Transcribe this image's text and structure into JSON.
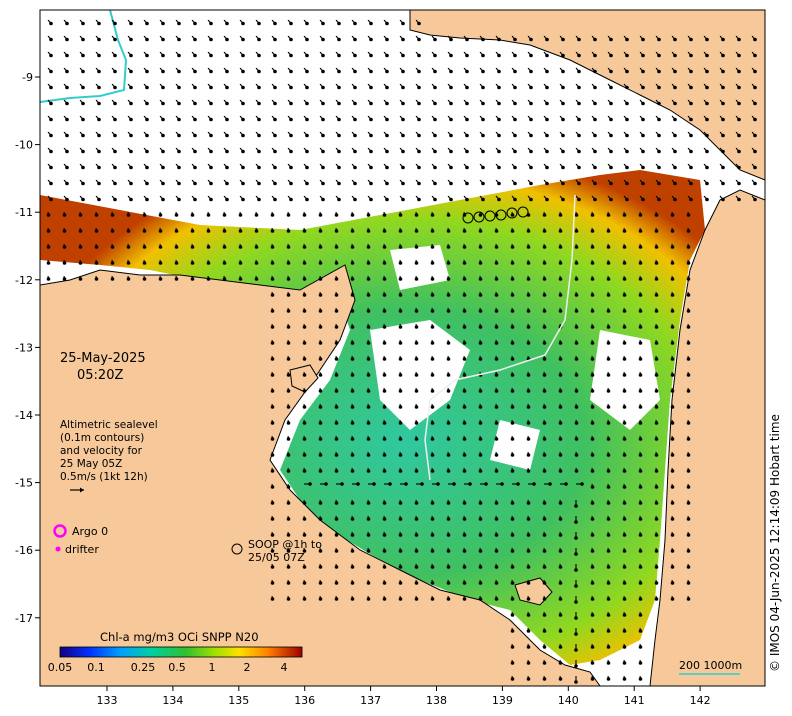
{
  "map": {
    "date_label": "25-May-2025",
    "time_label": "05:20Z",
    "legend": {
      "lines": [
        "Altimetric sealevel",
        "(0.1m contours)",
        "and velocity for",
        "25 May 05Z",
        "0.5m/s (1kt 12h)"
      ],
      "argo_label": "Argo 0",
      "drifter_label": "drifter",
      "soop_lines": [
        "SOOP @1h to",
        "25/05 07Z"
      ]
    },
    "colorbar": {
      "title": "Chl-a mg/m3 OCi SNPP N20",
      "ticks": [
        "0.05",
        "0.1",
        "0.25",
        "0.5",
        "1",
        "2",
        "4"
      ]
    },
    "scale_label": "200  1000m",
    "credit": "© IMOS 04-Jun-2025 12:14:09 Hobart time",
    "x_ticks": [
      "133",
      "134",
      "135",
      "136",
      "137",
      "138",
      "139",
      "140",
      "141",
      "142"
    ],
    "y_ticks": [
      "-9",
      "-10",
      "-11",
      "-12",
      "-13",
      "-14",
      "-15",
      "-16",
      "-17"
    ],
    "colors": {
      "land": "#f7c99a",
      "ocean_no_data": "#ffffff",
      "argo": "#ff00ff",
      "drifter": "#ff00ff",
      "track": "#33cccc"
    }
  }
}
